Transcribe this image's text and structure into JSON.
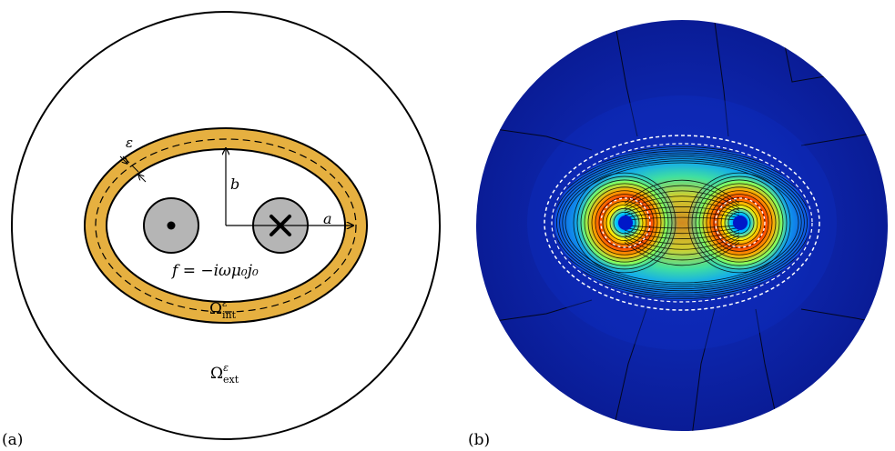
{
  "panel_a": {
    "label": "(a)",
    "epsilon": "ε",
    "b_label": "b",
    "a_label": "a",
    "equation": "f = −iωμ₀j₀",
    "omega_int": {
      "base": "Ω",
      "sup": "ε",
      "sub": "int"
    },
    "omega_ext": {
      "base": "Ω",
      "sup": "ε",
      "sub": "ext"
    },
    "colors": {
      "ring": "#e6b040",
      "conductor": "#b5b5b5",
      "outline": "#000000"
    }
  },
  "panel_b": {
    "label": "(b)",
    "colors": {
      "background": "#0a1f9e",
      "inner_field": "#0e2ec4",
      "contour": "#000000",
      "boundary": "#ffffff"
    }
  }
}
